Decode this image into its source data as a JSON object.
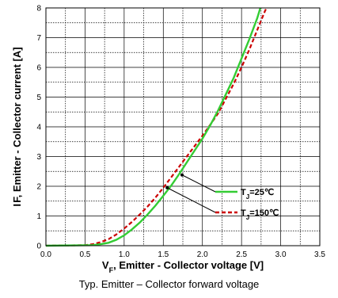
{
  "chart_data": {
    "type": "line",
    "caption": "Typ. Emitter – Collector forward voltage",
    "xlabel": {
      "main": "V",
      "sub": "F",
      "rest": ", Emitter - Collector voltage [V]"
    },
    "ylabel": "I F, Emitter - Collector current [A]",
    "xlim": [
      0.0,
      3.5
    ],
    "ylim": [
      0,
      8
    ],
    "x_ticks": [
      "0.0",
      "0.5",
      "1.0",
      "1.5",
      "2.0",
      "2.5",
      "3.0",
      "3.5"
    ],
    "y_ticks": [
      "0",
      "1",
      "2",
      "3",
      "4",
      "5",
      "6",
      "7",
      "8"
    ],
    "grid": true,
    "legend_position": "bottom-right",
    "series": [
      {
        "name": {
          "main": "T",
          "sub": "J",
          "rest": "=25℃"
        },
        "color": "#33cc33",
        "style": "solid",
        "points": [
          [
            0.0,
            0.0
          ],
          [
            0.4,
            0.01
          ],
          [
            0.6,
            0.02
          ],
          [
            0.7,
            0.05
          ],
          [
            0.8,
            0.1
          ],
          [
            0.9,
            0.2
          ],
          [
            1.0,
            0.35
          ],
          [
            1.1,
            0.55
          ],
          [
            1.2,
            0.78
          ],
          [
            1.3,
            1.05
          ],
          [
            1.4,
            1.35
          ],
          [
            1.5,
            1.68
          ],
          [
            1.6,
            2.02
          ],
          [
            1.7,
            2.4
          ],
          [
            1.8,
            2.8
          ],
          [
            1.9,
            3.2
          ],
          [
            2.0,
            3.6
          ],
          [
            2.1,
            4.05
          ],
          [
            2.2,
            4.55
          ],
          [
            2.3,
            5.1
          ],
          [
            2.4,
            5.65
          ],
          [
            2.5,
            6.3
          ],
          [
            2.6,
            6.95
          ],
          [
            2.7,
            7.65
          ],
          [
            2.74,
            8.0
          ]
        ]
      },
      {
        "name": {
          "main": "T",
          "sub": "J",
          "rest": "=150℃"
        },
        "color": "#cc0000",
        "style": "dashed",
        "points": [
          [
            0.0,
            0.0
          ],
          [
            0.5,
            0.02
          ],
          [
            0.6,
            0.05
          ],
          [
            0.7,
            0.12
          ],
          [
            0.8,
            0.22
          ],
          [
            0.9,
            0.38
          ],
          [
            1.0,
            0.58
          ],
          [
            1.1,
            0.8
          ],
          [
            1.2,
            1.05
          ],
          [
            1.3,
            1.32
          ],
          [
            1.4,
            1.62
          ],
          [
            1.5,
            1.95
          ],
          [
            1.6,
            2.3
          ],
          [
            1.7,
            2.65
          ],
          [
            1.8,
            3.0
          ],
          [
            1.9,
            3.35
          ],
          [
            2.0,
            3.7
          ],
          [
            2.1,
            4.07
          ],
          [
            2.2,
            4.45
          ],
          [
            2.3,
            4.95
          ],
          [
            2.4,
            5.45
          ],
          [
            2.5,
            6.0
          ],
          [
            2.6,
            6.6
          ],
          [
            2.7,
            7.25
          ],
          [
            2.8,
            7.9
          ],
          [
            2.82,
            8.0
          ]
        ]
      }
    ]
  }
}
